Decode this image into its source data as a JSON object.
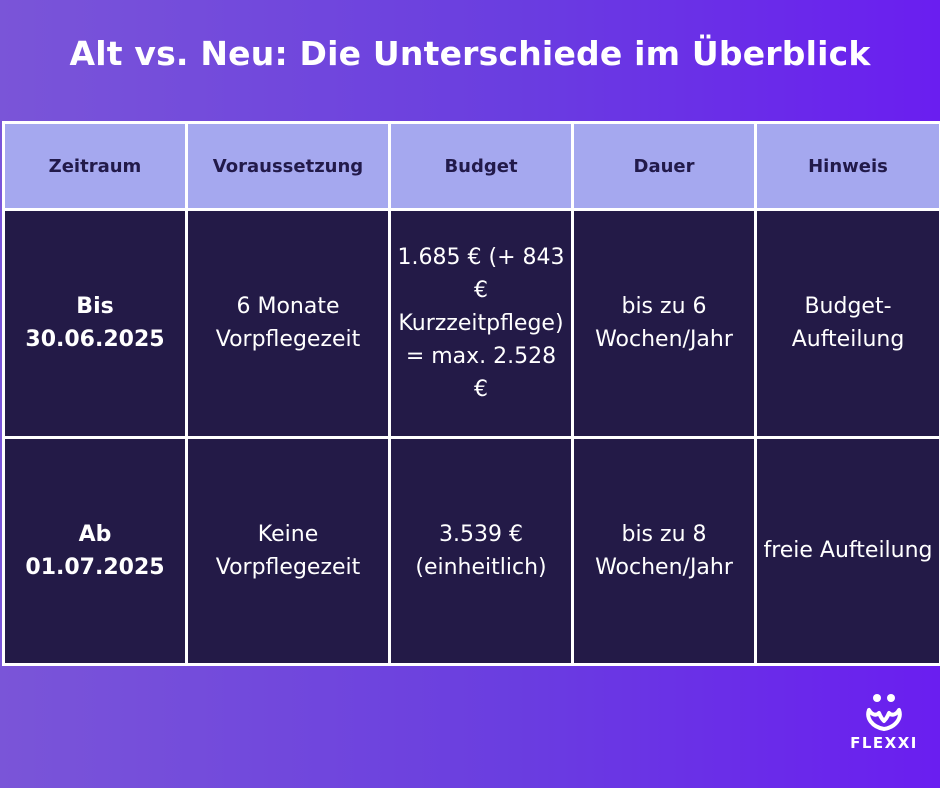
{
  "title": "Alt vs. Neu: Die Unterschiede im Überblick",
  "columns": [
    "Zeitraum",
    "Voraussetzung",
    "Budget",
    "Dauer",
    "Hinweis"
  ],
  "rows": [
    {
      "period": "Bis 30.06.2025",
      "requirement": "6 Monate Vorpflegezeit",
      "budget": "1.685 € (+ 843 € Kurzzeitpflege) = max. 2.528 €",
      "duration": "bis zu 6 Wochen/Jahr",
      "note": "Budget-Aufteilung"
    },
    {
      "period": "Ab 01.07.2025",
      "requirement": "Keine Vorpflegezeit",
      "budget": "3.539 € (einheitlich)",
      "duration": "bis zu 8 Wochen/Jahr",
      "note": "freie Aufteilung"
    }
  ],
  "brand": {
    "name": "FLEXXI",
    "icon": "flexxi-heart-logo-icon"
  },
  "colors": {
    "header_bg": "#a5a8ef",
    "cell_bg": "#231a47",
    "text_light": "#ffffff"
  }
}
